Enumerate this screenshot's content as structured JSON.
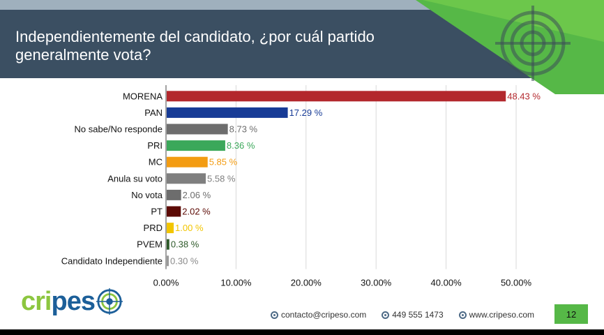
{
  "slide": {
    "title": "Independientemente del candidato, ¿por cuál partido generalmente vota?",
    "brand": {
      "part1": "cri",
      "part2": "pes"
    },
    "footer": {
      "email": "contacto@cripeso.com",
      "phone": "449 555 1473",
      "web": "www.cripeso.com"
    },
    "page_number": "12"
  },
  "colors": {
    "header": "#3b4f62",
    "accent_green": "#56b847",
    "brand_blue": "#1c5f99",
    "brand_green": "#8cc63f"
  },
  "chart_data": {
    "type": "bar",
    "orientation": "horizontal",
    "title": "",
    "xlabel": "",
    "ylabel": "",
    "xlim": [
      0,
      50
    ],
    "grid": true,
    "legend": "none",
    "tick_values": [
      0,
      10,
      20,
      30,
      40,
      50
    ],
    "tick_labels": [
      "0.00%",
      "10.00%",
      "20.00%",
      "30.00%",
      "40.00%",
      "50.00%"
    ],
    "categories": [
      "MORENA",
      "PAN",
      "No sabe/No responde",
      "PRI",
      "MC",
      "Anula su voto",
      "No vota",
      "PT",
      "PRD",
      "PVEM",
      "Candidato Independiente"
    ],
    "values": [
      48.43,
      17.29,
      8.73,
      8.36,
      5.85,
      5.58,
      2.06,
      2.02,
      1.0,
      0.38,
      0.3
    ],
    "value_labels": [
      "48.43 %",
      "17.29 %",
      "8.73 %",
      "8.36 %",
      "5.85 %",
      "5.58 %",
      "2.06 %",
      "2.02 %",
      "1.00 %",
      "0.38 %",
      "0.30 %"
    ],
    "bar_colors": [
      "#b3282d",
      "#173b96",
      "#6d6d6d",
      "#3ba85a",
      "#f39c12",
      "#7f7f7f",
      "#6d6d6d",
      "#5c0a05",
      "#f2c500",
      "#2e5a2a",
      "#9a9a9a"
    ],
    "label_colors": [
      "#b3282d",
      "#173b96",
      "#6d6d6d",
      "#3ba85a",
      "#f39c12",
      "#7f7f7f",
      "#6d6d6d",
      "#5c0a05",
      "#f2c500",
      "#2e5a2a",
      "#8a8a8a"
    ]
  }
}
